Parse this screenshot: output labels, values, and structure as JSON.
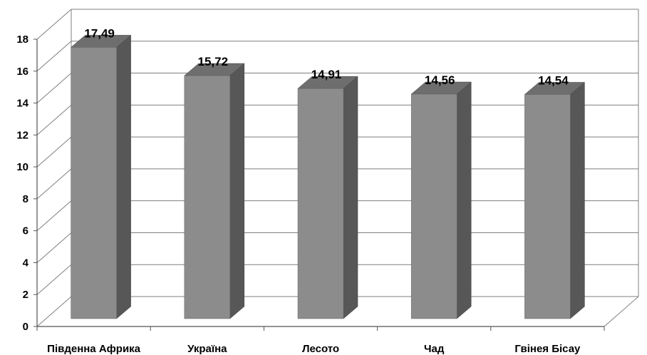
{
  "chart_data": {
    "type": "bar",
    "style": "3d-column",
    "categories": [
      "Південна Африка",
      "Україна",
      "Лесото",
      "Чад",
      "Гвінея Бісау"
    ],
    "values": [
      17.49,
      15.72,
      14.91,
      14.56,
      14.54
    ],
    "value_labels": [
      "17,49",
      "15,72",
      "14,91",
      "14,56",
      "14,54"
    ],
    "title": "",
    "xlabel": "",
    "ylabel": "",
    "ylim": [
      0,
      18
    ],
    "yticks": [
      0,
      2,
      4,
      6,
      8,
      10,
      12,
      14,
      16,
      18
    ],
    "grid": true,
    "legend": "none",
    "colors": {
      "bar_front": "#8c8c8c",
      "bar_side": "#575757",
      "bar_top": "#6e6e6e",
      "grid": "#7f7f7f",
      "axis": "#555555"
    }
  }
}
